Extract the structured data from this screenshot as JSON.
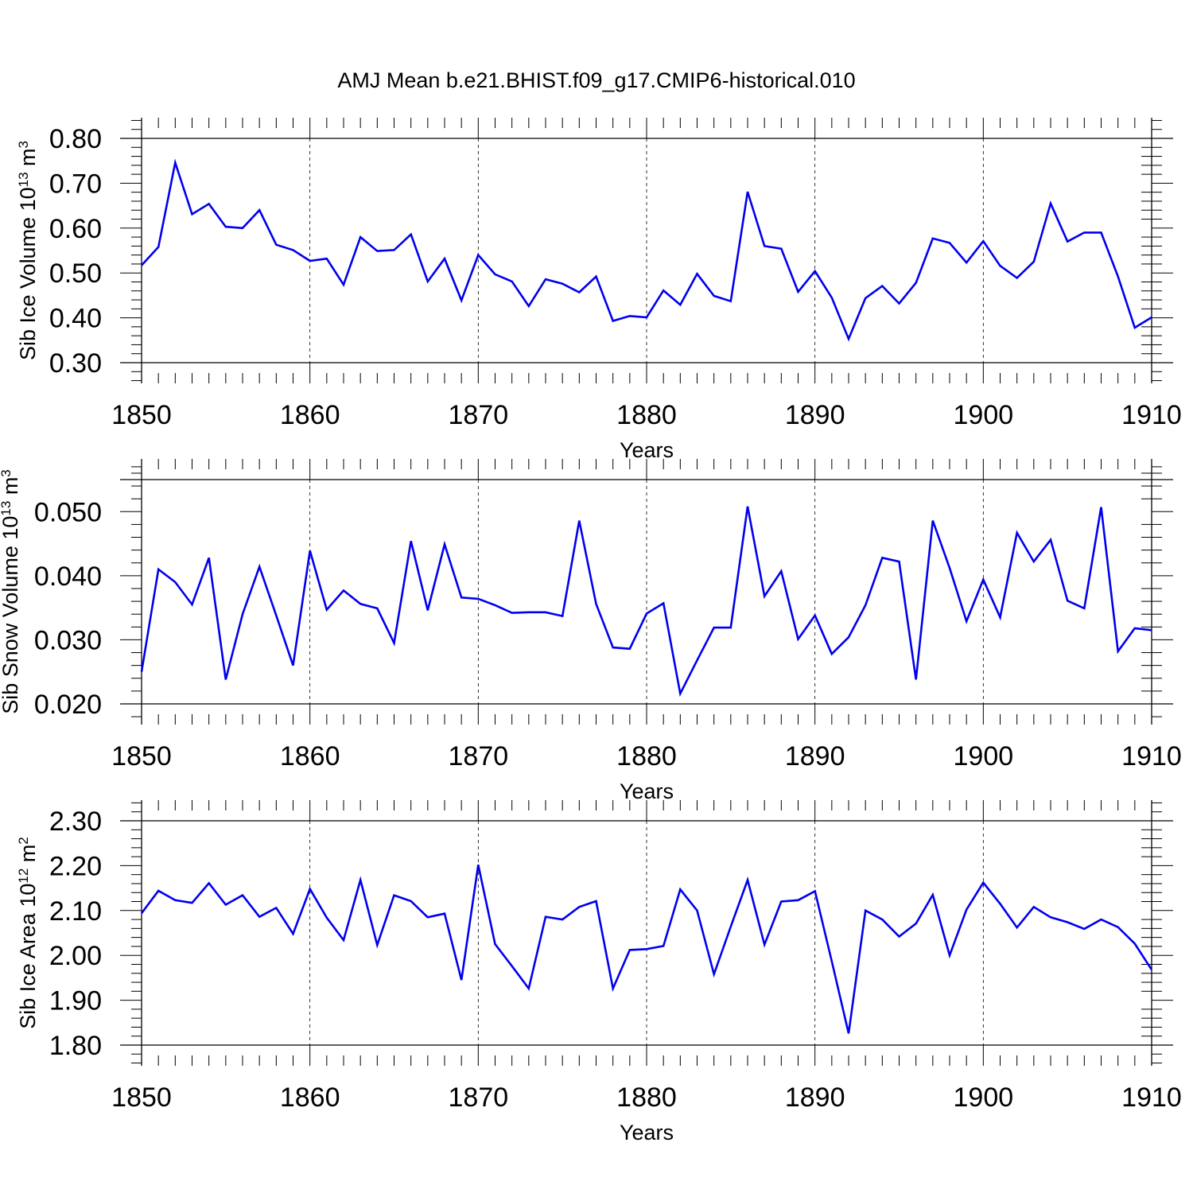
{
  "title": "AMJ Mean b.e21.BHIST.f09_g17.CMIP6-historical.010",
  "chart_data": [
    {
      "type": "line",
      "ylabel_main": "Sib Ice Volume 10",
      "ylabel_exp": "13",
      "ylabel_unit": " m",
      "ylabel_unit_exp": "3",
      "xlabel": "Years",
      "xlim": [
        1850,
        1910
      ],
      "ylim": [
        0.3,
        0.8
      ],
      "x_ticks": [
        "1850",
        "1860",
        "1870",
        "1880",
        "1890",
        "1900",
        "1910"
      ],
      "y_ticks": [
        "0.30",
        "0.40",
        "0.50",
        "0.60",
        "0.70",
        "0.80"
      ],
      "grid": "vertical dashed",
      "line_color": "#0000ee",
      "x": [
        1850,
        1851,
        1852,
        1853,
        1854,
        1855,
        1856,
        1857,
        1858,
        1859,
        1860,
        1861,
        1862,
        1863,
        1864,
        1865,
        1866,
        1867,
        1868,
        1869,
        1870,
        1871,
        1872,
        1873,
        1874,
        1875,
        1876,
        1877,
        1878,
        1879,
        1880,
        1881,
        1882,
        1883,
        1884,
        1885,
        1886,
        1887,
        1888,
        1889,
        1890,
        1891,
        1892,
        1893,
        1894,
        1895,
        1896,
        1897,
        1898,
        1899,
        1900,
        1901,
        1902,
        1903,
        1904,
        1905,
        1906,
        1907,
        1908,
        1909,
        1910
      ],
      "values": [
        0.517,
        0.558,
        0.746,
        0.631,
        0.654,
        0.603,
        0.6,
        0.64,
        0.563,
        0.551,
        0.527,
        0.532,
        0.474,
        0.58,
        0.549,
        0.551,
        0.586,
        0.481,
        0.532,
        0.439,
        0.54,
        0.497,
        0.481,
        0.426,
        0.486,
        0.476,
        0.457,
        0.492,
        0.393,
        0.404,
        0.401,
        0.461,
        0.429,
        0.498,
        0.449,
        0.437,
        0.681,
        0.56,
        0.554,
        0.458,
        0.504,
        0.445,
        0.353,
        0.444,
        0.471,
        0.432,
        0.478,
        0.577,
        0.567,
        0.523,
        0.571,
        0.516,
        0.489,
        0.525,
        0.655,
        0.57,
        0.59,
        0.59,
        0.492,
        0.378,
        0.401
      ]
    },
    {
      "type": "line",
      "ylabel_main": "Sib Snow Volume 10",
      "ylabel_exp": "13",
      "ylabel_unit": " m",
      "ylabel_unit_exp": "3",
      "xlabel": "Years",
      "xlim": [
        1850,
        1910
      ],
      "ylim": [
        0.02,
        0.055
      ],
      "x_ticks": [
        "1850",
        "1860",
        "1870",
        "1880",
        "1890",
        "1900",
        "1910"
      ],
      "y_ticks": [
        "0.020",
        "0.030",
        "0.040",
        "0.050"
      ],
      "grid": "vertical dashed",
      "line_color": "#0000ee",
      "x": [
        1850,
        1851,
        1852,
        1853,
        1854,
        1855,
        1856,
        1857,
        1858,
        1859,
        1860,
        1861,
        1862,
        1863,
        1864,
        1865,
        1866,
        1867,
        1868,
        1869,
        1870,
        1871,
        1872,
        1873,
        1874,
        1875,
        1876,
        1877,
        1878,
        1879,
        1880,
        1881,
        1882,
        1883,
        1884,
        1885,
        1886,
        1887,
        1888,
        1889,
        1890,
        1891,
        1892,
        1893,
        1894,
        1895,
        1896,
        1897,
        1898,
        1899,
        1900,
        1901,
        1902,
        1903,
        1904,
        1905,
        1906,
        1907,
        1908,
        1909,
        1910
      ],
      "values": [
        0.025,
        0.041,
        0.039,
        0.0355,
        0.0428,
        0.0238,
        0.034,
        0.0414,
        0.0338,
        0.026,
        0.0439,
        0.0347,
        0.0377,
        0.0356,
        0.0349,
        0.0295,
        0.0454,
        0.0346,
        0.0449,
        0.0366,
        0.0364,
        0.0354,
        0.0342,
        0.0343,
        0.0343,
        0.0337,
        0.0486,
        0.0356,
        0.0288,
        0.0286,
        0.0341,
        0.0357,
        0.0216,
        0.0268,
        0.0319,
        0.0319,
        0.0508,
        0.0368,
        0.0407,
        0.0301,
        0.0338,
        0.0278,
        0.0304,
        0.0354,
        0.0428,
        0.0422,
        0.0238,
        0.0486,
        0.0412,
        0.0329,
        0.0394,
        0.0335,
        0.0467,
        0.0422,
        0.0456,
        0.0361,
        0.0349,
        0.0507,
        0.0282,
        0.0318,
        0.0315
      ]
    },
    {
      "type": "line",
      "ylabel_main": "Sib Ice Area 10",
      "ylabel_exp": "12",
      "ylabel_unit": " m",
      "ylabel_unit_exp": "2",
      "xlabel": "Years",
      "xlim": [
        1850,
        1910
      ],
      "ylim": [
        1.8,
        2.3
      ],
      "x_ticks": [
        "1850",
        "1860",
        "1870",
        "1880",
        "1890",
        "1900",
        "1910"
      ],
      "y_ticks": [
        "1.80",
        "1.90",
        "2.00",
        "2.10",
        "2.20",
        "2.30"
      ],
      "grid": "vertical dashed",
      "line_color": "#0000ee",
      "x": [
        1850,
        1851,
        1852,
        1853,
        1854,
        1855,
        1856,
        1857,
        1858,
        1859,
        1860,
        1861,
        1862,
        1863,
        1864,
        1865,
        1866,
        1867,
        1868,
        1869,
        1870,
        1871,
        1872,
        1873,
        1874,
        1875,
        1876,
        1877,
        1878,
        1879,
        1880,
        1881,
        1882,
        1883,
        1884,
        1885,
        1886,
        1887,
        1888,
        1889,
        1890,
        1891,
        1892,
        1893,
        1894,
        1895,
        1896,
        1897,
        1898,
        1899,
        1900,
        1901,
        1902,
        1903,
        1904,
        1905,
        1906,
        1907,
        1908,
        1909,
        1910
      ],
      "values": [
        2.094,
        2.144,
        2.123,
        2.117,
        2.161,
        2.113,
        2.134,
        2.086,
        2.106,
        2.048,
        2.148,
        2.084,
        2.034,
        2.168,
        2.023,
        2.134,
        2.121,
        2.085,
        2.093,
        1.945,
        2.202,
        2.025,
        1.976,
        1.926,
        2.086,
        2.08,
        2.108,
        2.121,
        1.926,
        2.012,
        2.014,
        2.021,
        2.147,
        2.1,
        1.958,
        2.064,
        2.168,
        2.024,
        2.12,
        2.123,
        2.143,
        1.987,
        1.826,
        2.1,
        2.08,
        2.042,
        2.071,
        2.135,
        2.0,
        2.102,
        2.162,
        2.115,
        2.062,
        2.108,
        2.085,
        2.074,
        2.059,
        2.08,
        2.063,
        2.026,
        1.968
      ]
    }
  ]
}
